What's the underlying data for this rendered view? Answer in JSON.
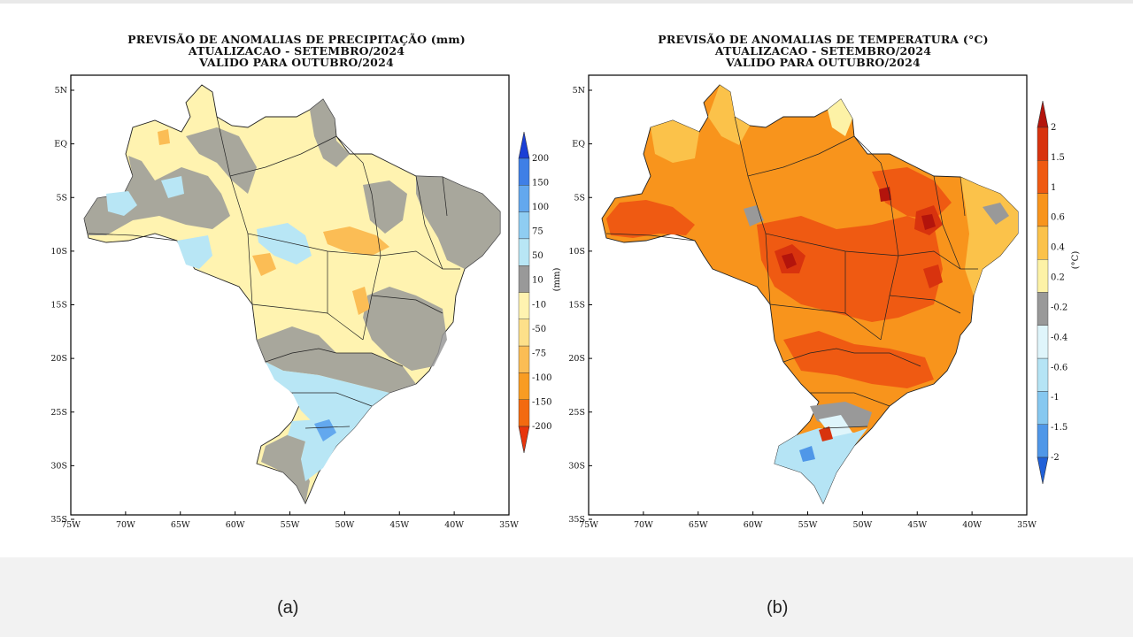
{
  "maps": [
    {
      "caption": "(a)",
      "title_lines": [
        "PREVISÃO DE ANOMALIAS DE PRECIPITAÇÃO (mm)",
        "ATUALIZACAO - SETEMBRO/2024",
        "VALIDO PARA OUTUBRO/2024"
      ],
      "unit_label": "(mm)",
      "colorbar_labels": [
        "200",
        "150",
        "100",
        "75",
        "50",
        "10",
        "-10",
        "-50",
        "-75",
        "-100",
        "-150",
        "-200"
      ],
      "colorbar_colors": [
        "#1a3fd6",
        "#3f7fe6",
        "#63a8ee",
        "#8fcdf2",
        "#b8e6f5",
        "#999999",
        "#fff3b0",
        "#fde08a",
        "#fbbd55",
        "#f99c22",
        "#f36a10",
        "#e8350c"
      ],
      "lat_labels": [
        "5N",
        "EQ",
        "5S",
        "10S",
        "15S",
        "20S",
        "25S",
        "30S",
        "35S"
      ],
      "lon_labels": [
        "75W",
        "70W",
        "65W",
        "60W",
        "55W",
        "50W",
        "45W",
        "40W",
        "35W"
      ]
    },
    {
      "caption": "(b)",
      "title_lines": [
        "PREVISÃO DE ANOMALIAS DE TEMPERATURA (°C)",
        "ATUALIZACAO - SETEMBRO/2024",
        "VALIDO PARA OUTUBRO/2024"
      ],
      "unit_label": "(°C)",
      "colorbar_labels": [
        "2",
        "1.5",
        "1",
        "0.6",
        "0.4",
        "0.2",
        "-0.2",
        "-0.4",
        "-0.6",
        "-1",
        "-1.5",
        "-2"
      ],
      "colorbar_colors": [
        "#b3140c",
        "#d8330e",
        "#ef5a12",
        "#f8941c",
        "#fbc24a",
        "#fdf2a6",
        "#999999",
        "#dff5fb",
        "#b5e4f5",
        "#86c8f0",
        "#4f97e8",
        "#2060d8"
      ],
      "lat_labels": [
        "5N",
        "EQ",
        "5S",
        "10S",
        "15S",
        "20S",
        "25S",
        "30S",
        "35S"
      ],
      "lon_labels": [
        "75W",
        "70W",
        "65W",
        "60W",
        "55W",
        "50W",
        "45W",
        "40W",
        "35W"
      ]
    }
  ]
}
